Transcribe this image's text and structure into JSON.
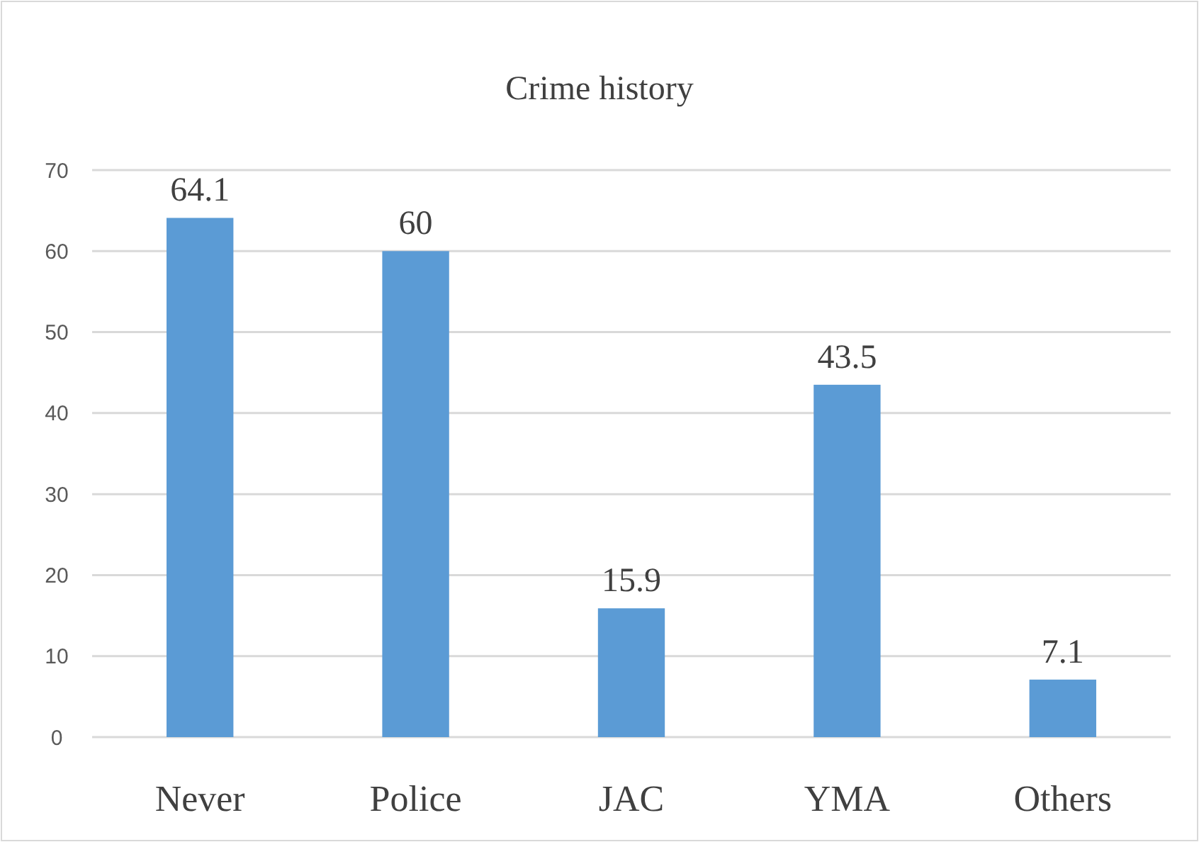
{
  "chart_data": {
    "type": "bar",
    "title": "Crime history",
    "categories": [
      "Never",
      "Police",
      "JAC",
      "YMA",
      "Others"
    ],
    "values": [
      64.1,
      60,
      15.9,
      43.5,
      7.1
    ],
    "color": "#5b9bd5",
    "ylim": [
      0,
      70
    ],
    "yticks": [
      0,
      10,
      20,
      30,
      40,
      50,
      60,
      70
    ],
    "grid": "y",
    "data_labels": true
  }
}
